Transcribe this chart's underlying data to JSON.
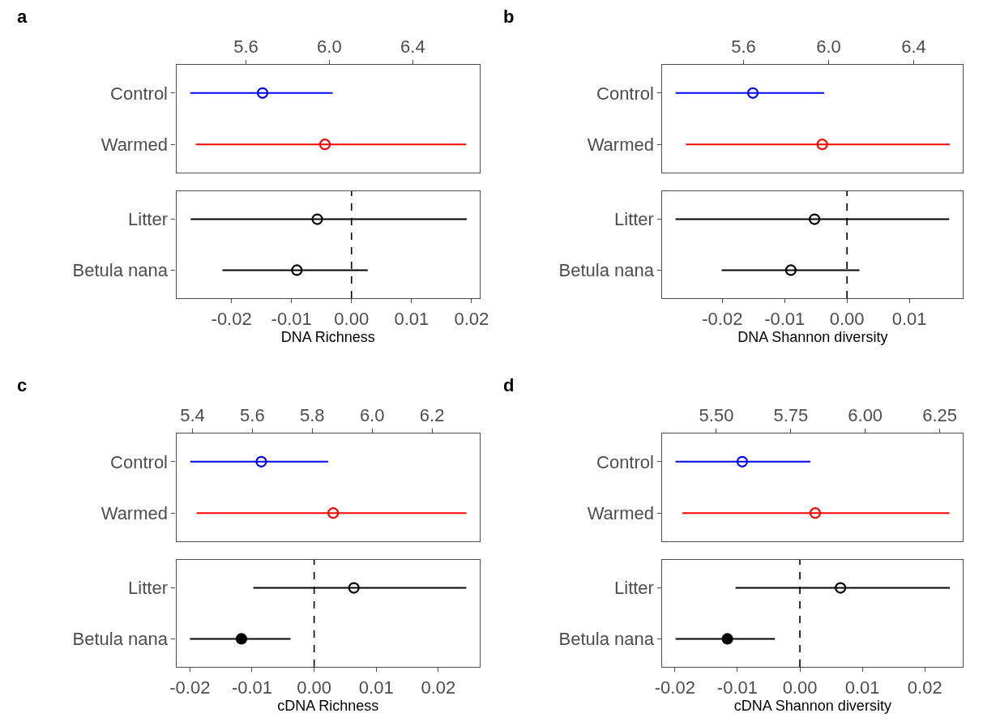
{
  "chart_data": [
    {
      "type": "scatter",
      "title": "a",
      "orientation": "horizontal",
      "categories": [
        "Control",
        "Warmed"
      ],
      "values": [
        5.68,
        5.979
      ],
      "errors": [
        [
          5.333,
          6.015
        ],
        [
          5.36,
          6.656
        ]
      ],
      "colors": [
        "#0000ff",
        "#ff0000"
      ],
      "marker": "circle",
      "xlim": [
        5.266,
        6.722
      ],
      "xticks": [
        5.6,
        {
          "value": 6.0,
          "label": "6.0"
        },
        6.4
      ]
    },
    {
      "type": "scatter",
      "orientation": "horizontal",
      "categories": [
        "Litter",
        "Betula nana"
      ],
      "values": [
        -0.0057,
        -0.0091
      ],
      "errors": [
        [
          -0.0268,
          0.0192
        ],
        [
          -0.0215,
          0.0027
        ]
      ],
      "colors": [
        "#000000",
        "#000000"
      ],
      "marker": "circle",
      "xlim": [
        -0.0292,
        0.0214
      ],
      "xticks": [
        -0.02,
        -0.01,
        {
          "value": 0,
          "label": "0.00"
        },
        0.01,
        0.02
      ],
      "xlabel": "DNA Richness",
      "ref_lines": [
        {
          "axis": "x",
          "value": 0,
          "color": "#000000",
          "line_style": "dashed"
        }
      ]
    },
    {
      "type": "scatter",
      "title": "b",
      "orientation": "horizontal",
      "categories": [
        "Control",
        "Warmed"
      ],
      "values": [
        5.644,
        5.97
      ],
      "errors": [
        [
          5.281,
          5.979
        ],
        [
          5.329,
          6.569
        ]
      ],
      "colors": [
        "#0000ff",
        "#ff0000"
      ],
      "marker": "circle",
      "xlim": [
        5.219,
        6.631
      ],
      "xticks": [
        5.6,
        {
          "value": 6.0,
          "label": "6.0"
        },
        6.4
      ]
    },
    {
      "type": "scatter",
      "orientation": "horizontal",
      "categories": [
        "Litter",
        "Betula nana"
      ],
      "values": [
        -0.0052,
        -0.009
      ],
      "errors": [
        [
          -0.0275,
          0.0164
        ],
        [
          -0.0201,
          0.002
        ]
      ],
      "colors": [
        "#000000",
        "#000000"
      ],
      "marker": "circle",
      "xlim": [
        -0.0296,
        0.0186
      ],
      "xticks": [
        -0.02,
        -0.01,
        {
          "value": 0,
          "label": "0.00"
        },
        0.01
      ],
      "xlabel": "DNA Shannon diversity",
      "ref_lines": [
        {
          "axis": "x",
          "value": 0,
          "color": "#000000",
          "line_style": "dashed"
        }
      ]
    },
    {
      "type": "scatter",
      "title": "c",
      "orientation": "horizontal",
      "categories": [
        "Control",
        "Warmed"
      ],
      "values": [
        5.63,
        5.87
      ],
      "errors": [
        [
          5.393,
          5.853
        ],
        [
          5.414,
          6.315
        ]
      ],
      "colors": [
        "#0000ff",
        "#ff0000"
      ],
      "marker": "circle",
      "xlim": [
        5.346,
        6.36
      ],
      "xticks": [
        5.4,
        5.6,
        5.8,
        {
          "value": 6.0,
          "label": "6.0"
        },
        6.2
      ]
    },
    {
      "type": "scatter",
      "orientation": "horizontal",
      "categories": [
        "Litter",
        "Betula nana"
      ],
      "values": [
        0.0064,
        -0.0117
      ],
      "errors": [
        [
          -0.0098,
          0.0245
        ],
        [
          -0.02,
          -0.0038
        ]
      ],
      "colors": [
        "#000000",
        "#000000"
      ],
      "marker": "circle",
      "xlim": [
        -0.0222,
        0.0267
      ],
      "xticks": [
        -0.02,
        -0.01,
        {
          "value": 0,
          "label": "0.00"
        },
        0.01,
        0.02
      ],
      "xlabel": "cDNA Richness",
      "ref_lines": [
        {
          "axis": "x",
          "value": 0,
          "color": "#000000",
          "line_style": "dashed"
        }
      ]
    },
    {
      "type": "scatter",
      "title": "d",
      "orientation": "horizontal",
      "categories": [
        "Control",
        "Warmed"
      ],
      "values": [
        5.587,
        5.832
      ],
      "errors": [
        [
          5.363,
          5.816
        ],
        [
          5.386,
          6.283
        ]
      ],
      "colors": [
        "#0000ff",
        "#ff0000"
      ],
      "marker": "circle",
      "xlim": [
        5.319,
        6.328
      ],
      "xticks": [
        {
          "value": 5.5,
          "label": "5.50"
        },
        5.75,
        {
          "value": 6.0,
          "label": "6.00"
        },
        6.25
      ]
    },
    {
      "type": "scatter",
      "orientation": "horizontal",
      "categories": [
        "Litter",
        "Betula nana"
      ],
      "values": [
        0.0065,
        -0.0116
      ],
      "errors": [
        [
          -0.0103,
          0.024
        ],
        [
          -0.0199,
          -0.004
        ]
      ],
      "colors": [
        "#000000",
        "#000000"
      ],
      "marker": "circle",
      "xlim": [
        -0.022,
        0.0261
      ],
      "xticks": [
        -0.02,
        -0.01,
        {
          "value": 0,
          "label": "0.00"
        },
        0.01,
        0.02
      ],
      "xlabel": "cDNA Shannon diversity",
      "ref_lines": [
        {
          "axis": "x",
          "value": 0,
          "color": "#000000",
          "line_style": "dashed"
        }
      ]
    }
  ]
}
